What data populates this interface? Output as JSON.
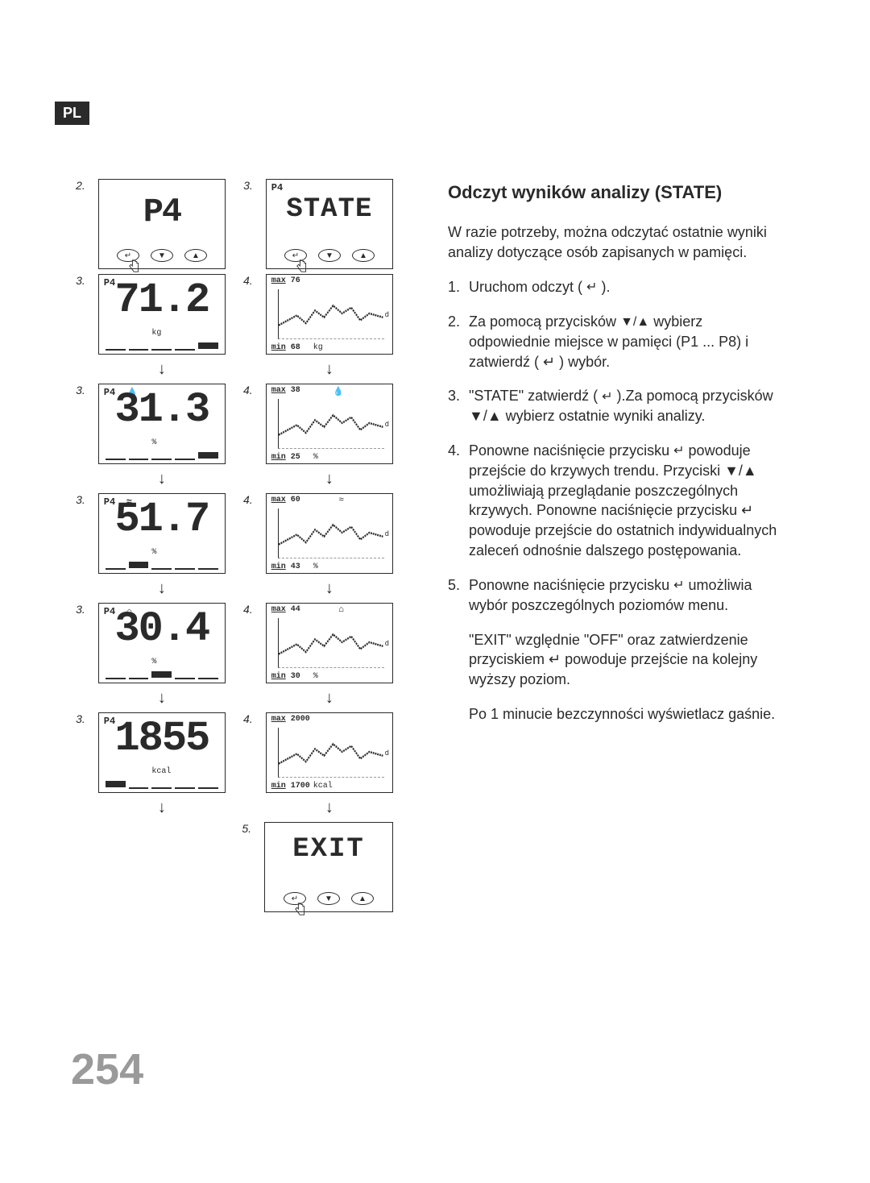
{
  "lang_badge": "PL",
  "page_number": "254",
  "heading": "Odczyt wyników analizy (STATE)",
  "intro": "W razie potrzeby, można odczytać ostatnie wyniki analizy dotyczące osób zapisanych w pamięci.",
  "steps": [
    {
      "n": "1.",
      "pre": "Uruchom odczyt ( ",
      "icon": "↵",
      "post": " )."
    },
    {
      "n": "2.",
      "pre": "Za pomocą przycisków ",
      "icon": "▼/▲",
      "post": " wybierz odpowiednie miejsce w pamięci (P1 ... P8) i zatwierdź ( ↵ ) wybór."
    },
    {
      "n": "3.",
      "pre": "\"STATE\" zatwierdź ( ",
      "icon": "↵",
      "post": " ).Za pomocą przycisków ▼/▲ wybierz ostatnie wyniki analizy."
    },
    {
      "n": "4.",
      "pre": "Ponowne naciśnięcie przycisku ",
      "icon": "↵",
      "post": " powoduje przejście do krzywych trendu. Przyciski ▼/▲ umożliwiają przeglądanie poszczególnych krzywych. Ponowne naciśnięcie przycisku ↵ powoduje przejście do ostatnich indywidualnych zaleceń odnośnie dalszego postępowania."
    },
    {
      "n": "5.",
      "pre": "Ponowne naciśnięcie przycisku ",
      "icon": "↵",
      "post": " umożliwia wybór poszczególnych poziomów menu."
    }
  ],
  "tail1": "\"EXIT\" względnie \"OFF\" oraz zatwierdzenie przyciskiem ↵ powoduje przejście na kolejny wyższy poziom.",
  "tail2": "Po 1 minucie bezczynności wyświetlacz gaśnie.",
  "panels": {
    "top_left": {
      "num": "2.",
      "big": "P4"
    },
    "top_right": {
      "num": "3.",
      "corner": "P4",
      "big": "STATE"
    },
    "rows": [
      {
        "num3": "3.",
        "num4": "4.",
        "corner": "P4",
        "val": "71.2",
        "unit": "kg",
        "bar_fill": 4,
        "max": "76",
        "min": "68",
        "gunit": "kg",
        "gicon": ""
      },
      {
        "num3": "3.",
        "num4": "4.",
        "corner": "P4",
        "val": "31.3",
        "unit": "%",
        "bar_fill": 4,
        "max": "38",
        "min": "25",
        "gunit": "%",
        "gicon": "💧",
        "extra_icon": "💧"
      },
      {
        "num3": "3.",
        "num4": "4.",
        "corner": "P4",
        "val": "51.7",
        "unit": "%",
        "bar_fill": 1,
        "max": "60",
        "min": "43",
        "gunit": "%",
        "gicon": "≈",
        "extra_icon": "≈"
      },
      {
        "num3": "3.",
        "num4": "4.",
        "corner": "P4",
        "val": "30.4",
        "unit": "%",
        "bar_fill": 2,
        "max": "44",
        "min": "30",
        "gunit": "%",
        "gicon": "⌂",
        "extra_icon": "⌂"
      },
      {
        "num3": "3.",
        "num4": "4.",
        "corner": "P4",
        "val": "1855",
        "unit": "kcal",
        "bar_fill": 0,
        "max": "2000",
        "min": "1700",
        "gunit": "kcal",
        "gicon": ""
      }
    ],
    "exit": {
      "num": "5.",
      "big": "EXIT"
    }
  },
  "colors": {
    "text": "#2a2a2a",
    "page_num": "#9a9a9a",
    "bg": "#ffffff"
  }
}
